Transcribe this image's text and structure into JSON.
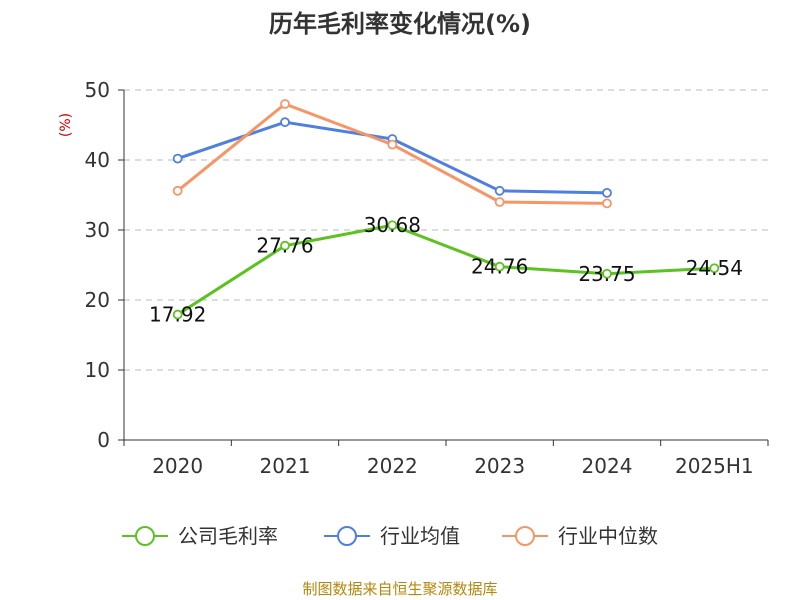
{
  "chart_data": {
    "type": "line",
    "title": "历年毛利率变化情况(%)",
    "ylabel": "(%)",
    "xlabel": "",
    "categories": [
      "2020",
      "2021",
      "2022",
      "2023",
      "2024",
      "2025H1"
    ],
    "ylim": [
      0,
      50
    ],
    "yticks": [
      0,
      10,
      20,
      30,
      40,
      50
    ],
    "grid": true,
    "legend_position": "bottom",
    "series": [
      {
        "name": "公司毛利率",
        "color": "#5bc220",
        "values": [
          17.92,
          27.76,
          30.68,
          24.76,
          23.75,
          24.54
        ],
        "labels": [
          "17.92",
          "27.76",
          "30.68",
          "24.76",
          "23.75",
          "24.54"
        ]
      },
      {
        "name": "行业均值",
        "color": "#4f7fe0",
        "values": [
          40.2,
          45.4,
          43.0,
          35.6,
          35.3,
          null
        ]
      },
      {
        "name": "行业中位数",
        "color": "#f79566",
        "values": [
          35.6,
          48.0,
          42.2,
          34.0,
          33.8,
          null
        ]
      }
    ],
    "source": "制图数据来自恒生聚源数据库"
  }
}
